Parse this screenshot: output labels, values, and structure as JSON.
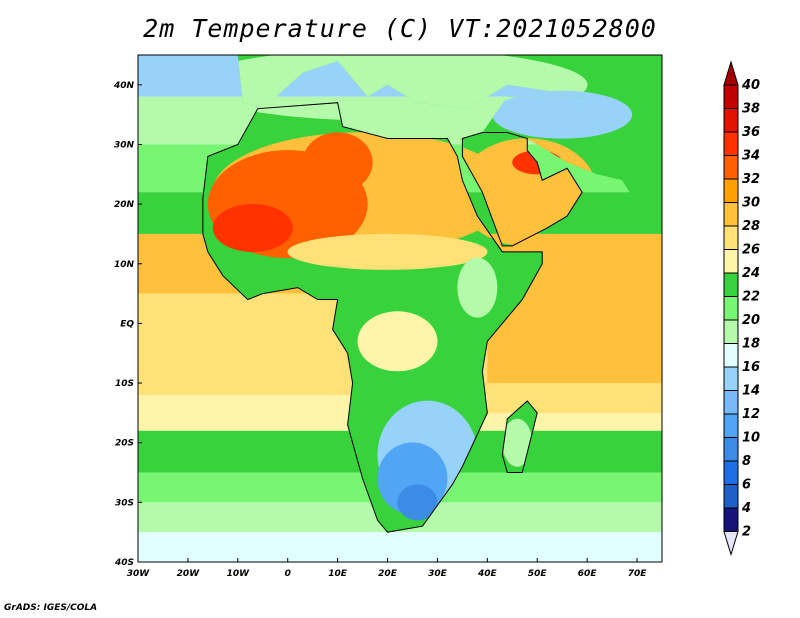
{
  "title": "2m Temperature (C) VT:2021052800",
  "footer": "GrADS: IGES/COLA",
  "map": {
    "lon_range": [
      -30,
      75
    ],
    "lat_range": [
      -40,
      45
    ],
    "x_ticks": [
      {
        "v": -30,
        "label": "30W"
      },
      {
        "v": -20,
        "label": "20W"
      },
      {
        "v": -10,
        "label": "10W"
      },
      {
        "v": 0,
        "label": "0"
      },
      {
        "v": 10,
        "label": "10E"
      },
      {
        "v": 20,
        "label": "20E"
      },
      {
        "v": 30,
        "label": "30E"
      },
      {
        "v": 40,
        "label": "40E"
      },
      {
        "v": 50,
        "label": "50E"
      },
      {
        "v": 60,
        "label": "60E"
      },
      {
        "v": 70,
        "label": "70E"
      }
    ],
    "y_ticks": [
      {
        "v": 40,
        "label": "40N"
      },
      {
        "v": 30,
        "label": "30N"
      },
      {
        "v": 20,
        "label": "20N"
      },
      {
        "v": 10,
        "label": "10N"
      },
      {
        "v": 0,
        "label": "EQ"
      },
      {
        "v": -10,
        "label": "10S"
      },
      {
        "v": -20,
        "label": "20S"
      },
      {
        "v": -30,
        "label": "30S"
      },
      {
        "v": -40,
        "label": "40S"
      }
    ]
  },
  "colorbar": {
    "below_color": "#e6e6ff",
    "above_color": "#a50000",
    "bins": [
      {
        "lo": 2,
        "color": "#16137a"
      },
      {
        "lo": 4,
        "color": "#1e5fc8"
      },
      {
        "lo": 6,
        "color": "#1e6ee6"
      },
      {
        "lo": 8,
        "color": "#3c8ce6"
      },
      {
        "lo": 10,
        "color": "#50a5f5"
      },
      {
        "lo": 12,
        "color": "#78b9fa"
      },
      {
        "lo": 14,
        "color": "#96d2fa"
      },
      {
        "lo": 16,
        "color": "#e1ffff"
      },
      {
        "lo": 18,
        "color": "#b4faaa"
      },
      {
        "lo": 20,
        "color": "#78f573"
      },
      {
        "lo": 22,
        "color": "#37d23c"
      },
      {
        "lo": 24,
        "color": "#fff5aa"
      },
      {
        "lo": 26,
        "color": "#ffe178"
      },
      {
        "lo": 28,
        "color": "#ffc03c"
      },
      {
        "lo": 30,
        "color": "#ffa000"
      },
      {
        "lo": 32,
        "color": "#ff6000"
      },
      {
        "lo": 34,
        "color": "#ff3200"
      },
      {
        "lo": 36,
        "color": "#e11400"
      },
      {
        "lo": 38,
        "color": "#c00000"
      }
    ],
    "labels": [
      "2",
      "4",
      "6",
      "8",
      "10",
      "12",
      "14",
      "16",
      "18",
      "20",
      "22",
      "24",
      "26",
      "28",
      "30",
      "32",
      "34",
      "36",
      "38",
      "40"
    ]
  }
}
